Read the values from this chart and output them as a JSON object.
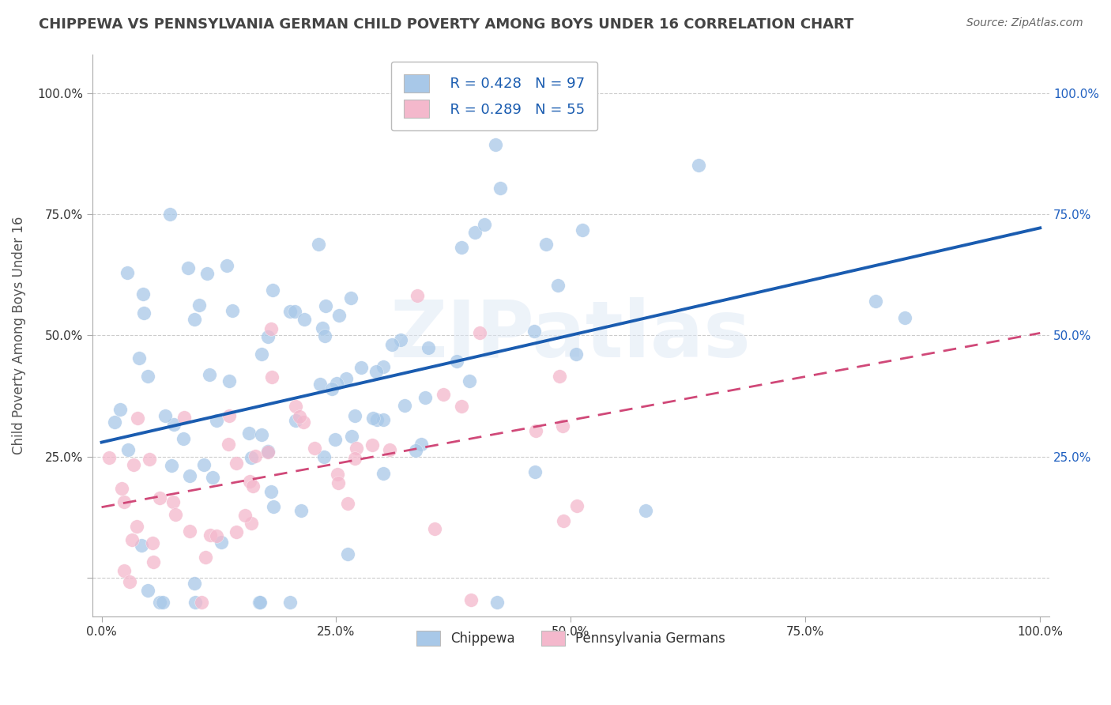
{
  "title": "CHIPPEWA VS PENNSYLVANIA GERMAN CHILD POVERTY AMONG BOYS UNDER 16 CORRELATION CHART",
  "source": "Source: ZipAtlas.com",
  "ylabel": "Child Poverty Among Boys Under 16",
  "xlabel": "",
  "background_color": "#ffffff",
  "chippewa_color": "#A8C8E8",
  "chippewa_edge_color": "#A8C8E8",
  "chippewa_line_color": "#1A5CB0",
  "penn_color": "#F4B8CC",
  "penn_edge_color": "#F4B8CC",
  "penn_line_color": "#D04878",
  "grid_color": "#cccccc",
  "legend_R1": "R = 0.428",
  "legend_N1": "N = 97",
  "legend_R2": "R = 0.289",
  "legend_N2": "N = 55",
  "legend_label1": "Chippewa",
  "legend_label2": "Pennsylvania Germans",
  "watermark": "ZIPatlas",
  "title_color": "#444444",
  "source_color": "#666666",
  "tick_color": "#2060C0",
  "right_tick_color": "#2060C0"
}
